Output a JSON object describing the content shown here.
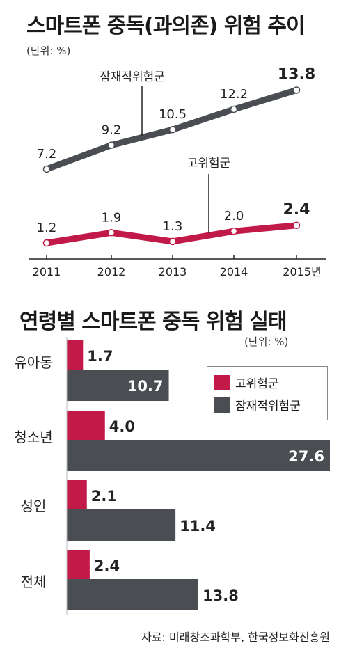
{
  "titles": {
    "line": "스마트폰 중독(과의존) 위험 추이",
    "bar": "연령별 스마트폰 중독 위험 실태"
  },
  "units": {
    "line": "(단위: %)",
    "bar": "(단위: %)"
  },
  "source": "자료: 미래창조과학부, 한국정보화진흥원",
  "colors": {
    "high_risk": "#c21a48",
    "potential_risk": "#4a4d52"
  },
  "chart_data": [
    {
      "type": "line",
      "title": "스마트폰 중독(과의존) 위험 추이",
      "unit": "(단위: %)",
      "x": [
        "2011",
        "2012",
        "2013",
        "2014",
        "2015년"
      ],
      "series": [
        {
          "name": "잠재적위험군",
          "values": [
            7.2,
            9.2,
            10.5,
            12.2,
            13.8
          ],
          "labels": [
            "7.2",
            "9.2",
            "10.5",
            "12.2",
            "13.8"
          ]
        },
        {
          "name": "고위험군",
          "values": [
            1.2,
            1.9,
            1.3,
            2.0,
            2.4
          ],
          "labels": [
            "1.2",
            "1.9",
            "1.3",
            "2.0",
            "2.4"
          ]
        }
      ],
      "grid": false
    },
    {
      "type": "bar",
      "title": "연령별 스마트폰 중독 위험 실태",
      "unit": "(단위: %)",
      "categories": [
        "유아동",
        "청소년",
        "성인",
        "전체"
      ],
      "series": [
        {
          "name": "고위험군",
          "values": [
            1.7,
            4.0,
            2.1,
            2.4
          ],
          "labels": [
            "1.7",
            "4.0",
            "2.1",
            "2.4"
          ]
        },
        {
          "name": "잠재적위험군",
          "values": [
            10.7,
            27.6,
            11.4,
            13.8
          ],
          "labels": [
            "10.7",
            "27.6",
            "11.4",
            "13.8"
          ]
        }
      ],
      "legend": {
        "position": "top-right",
        "items": [
          "고위험군",
          "잠재적위험군"
        ]
      },
      "orientation": "horizontal"
    }
  ]
}
